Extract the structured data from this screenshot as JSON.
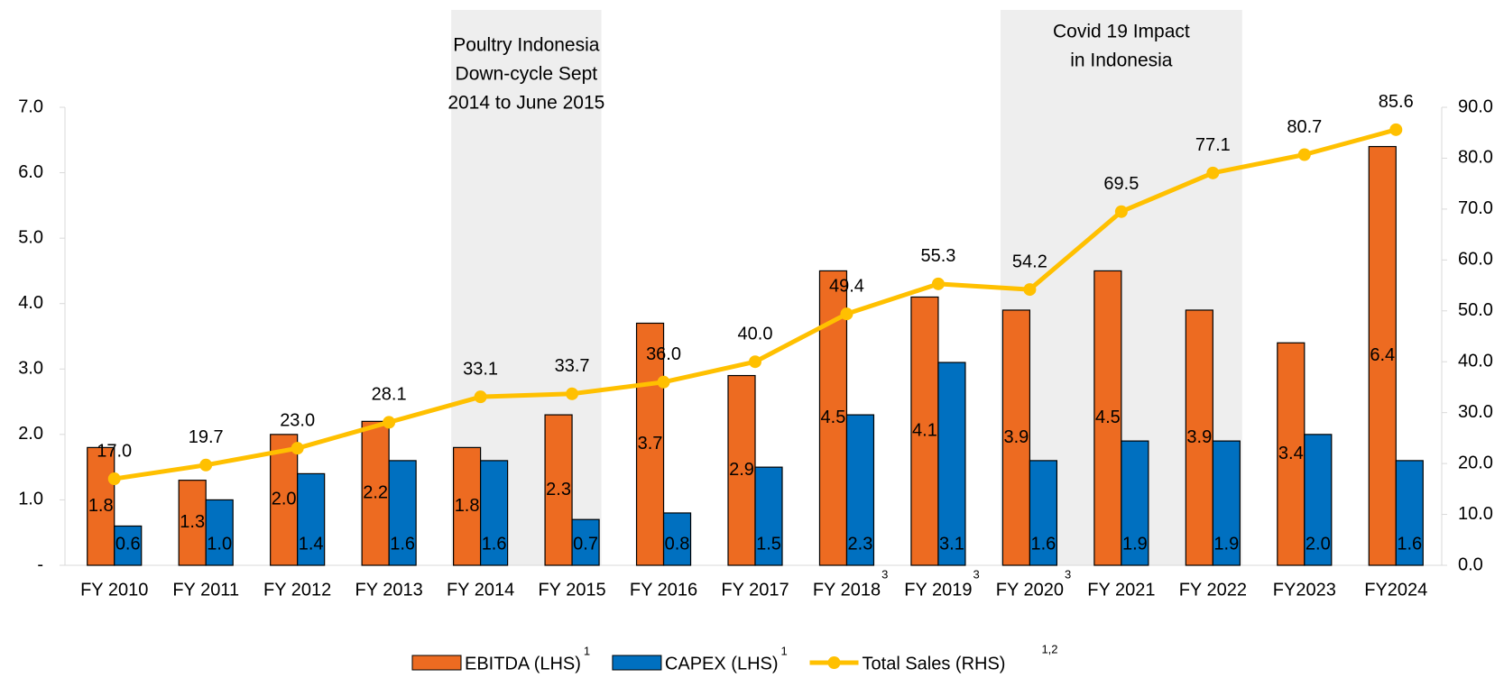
{
  "chart_data": {
    "type": "bar-line",
    "categories": [
      "FY 2010",
      "FY 2011",
      "FY 2012",
      "FY 2013",
      "FY 2014",
      "FY 2015",
      "FY 2016",
      "FY 2017",
      "FY 2018",
      "FY 2019",
      "FY 2020",
      "FY 2021",
      "FY 2022",
      "FY2023",
      "FY2024"
    ],
    "category_notes": [
      null,
      null,
      null,
      null,
      null,
      null,
      null,
      null,
      "3",
      "3",
      "3",
      null,
      null,
      null,
      null
    ],
    "series": [
      {
        "name": "EBITDA (LHS)",
        "note": "1",
        "type": "bar",
        "axis": "y",
        "color": "#ED6B21",
        "values": [
          1.8,
          1.3,
          2.0,
          2.2,
          1.8,
          2.3,
          3.7,
          2.9,
          4.5,
          4.1,
          3.9,
          4.5,
          3.9,
          3.4,
          6.4
        ],
        "value_labels": [
          "1.8",
          "1.3",
          "2.0",
          "2.2",
          "1.8",
          "2.3",
          "3.7",
          "2.9",
          "4.5",
          "4.1",
          "3.9",
          "4.5",
          "3.9",
          "3.4",
          "6.4"
        ]
      },
      {
        "name": "CAPEX (LHS)",
        "note": "1",
        "type": "bar",
        "axis": "y",
        "color": "#0070C0",
        "values": [
          0.6,
          1.0,
          1.4,
          1.6,
          1.6,
          0.7,
          0.8,
          1.5,
          2.3,
          3.1,
          1.6,
          1.9,
          1.9,
          2.0,
          1.6
        ],
        "value_labels": [
          "0.6",
          "1.0",
          "1.4",
          "1.6",
          "1.6",
          "0.7",
          "0.8",
          "1.5",
          "2.3",
          "3.1",
          "1.6",
          "1.9",
          "1.9",
          "2.0",
          "1.6"
        ]
      },
      {
        "name": "Total Sales (RHS)",
        "note": "1,2",
        "type": "line",
        "axis": "y2",
        "color": "#FFC000",
        "values": [
          17.0,
          19.7,
          23.0,
          28.1,
          33.1,
          33.7,
          36.0,
          40.0,
          49.4,
          55.3,
          54.2,
          69.5,
          77.1,
          80.7,
          85.6
        ],
        "value_labels": [
          "17.0",
          "19.7",
          "23.0",
          "28.1",
          "33.1",
          "33.7",
          "36.0",
          "40.0",
          "49.4",
          "55.3",
          "54.2",
          "69.5",
          "77.1",
          "80.7",
          "85.6"
        ]
      }
    ],
    "ylim": [
      0,
      7
    ],
    "yticks": [
      {
        "value": 0,
        "label": "-"
      },
      {
        "value": 1,
        "label": "1.0"
      },
      {
        "value": 2,
        "label": "2.0"
      },
      {
        "value": 3,
        "label": "3.0"
      },
      {
        "value": 4,
        "label": "4.0"
      },
      {
        "value": 5,
        "label": "5.0"
      },
      {
        "value": 6,
        "label": "6.0"
      },
      {
        "value": 7,
        "label": "7.0"
      }
    ],
    "y2lim": [
      0,
      90
    ],
    "y2ticks": [
      {
        "value": 0,
        "label": "0.0"
      },
      {
        "value": 10,
        "label": "10.0"
      },
      {
        "value": 20,
        "label": "20.0"
      },
      {
        "value": 30,
        "label": "30.0"
      },
      {
        "value": 40,
        "label": "40.0"
      },
      {
        "value": 50,
        "label": "50.0"
      },
      {
        "value": 60,
        "label": "60.0"
      },
      {
        "value": 70,
        "label": "70.0"
      },
      {
        "value": 80,
        "label": "80.0"
      },
      {
        "value": 90,
        "label": "90.0"
      }
    ],
    "annotations": [
      {
        "lines": [
          "Poultry Indonesia",
          "Down-cycle Sept",
          "2014 to June 2015"
        ],
        "from": "FY 2014",
        "to": "FY 2015"
      },
      {
        "lines": [
          "Covid 19 Impact",
          "in Indonesia"
        ],
        "from": "FY 2020",
        "to": "FY 2022"
      }
    ],
    "legend": "bottom"
  }
}
